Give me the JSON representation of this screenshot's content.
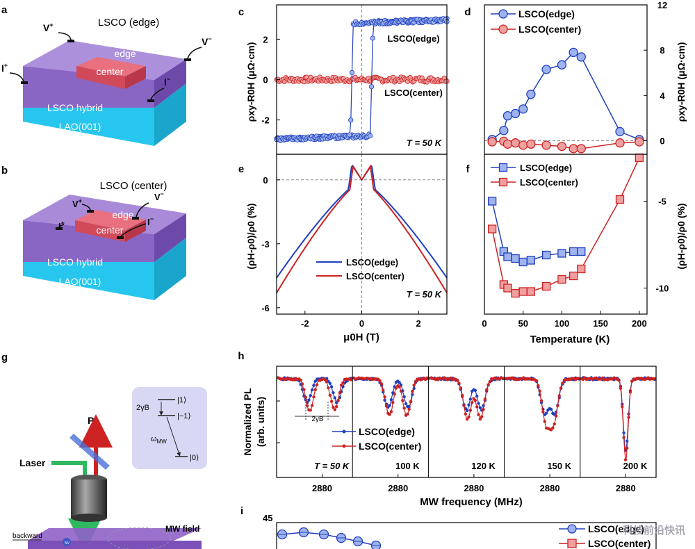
{
  "panels": {
    "a": {
      "letter": "a",
      "title": "LSCO (edge)",
      "top_label": "edge",
      "center_label": "center",
      "hybrid_label": "LSCO hybrid",
      "substrate_label": "LAO(001)",
      "probes": {
        "v_plus": "V",
        "v_minus": "V",
        "i_plus": "I",
        "i_minus": "I"
      }
    },
    "b": {
      "letter": "b",
      "title": "LSCO (center)",
      "top_label": "edge",
      "center_label": "center",
      "hybrid_label": "LSCO hybrid",
      "substrate_label": "LAO(001)",
      "probes": {
        "v_plus": "V",
        "v_minus": "V",
        "i_plus": "I",
        "i_minus": "I"
      }
    },
    "g": {
      "letter": "g",
      "pl_label": "PL",
      "laser_label": "Laser",
      "backward_label": "backward",
      "mw_field_label": "MW field",
      "nv_label": "NV",
      "inset": {
        "gamma_label": "2γB",
        "omega_label": "ω",
        "omega_sub": "MW",
        "state_1": "|1⟩",
        "state_m1": "|−1⟩",
        "state_0": "|0⟩"
      }
    },
    "i": {
      "letter": "i",
      "y_top": "45",
      "legend": [
        "LSCO(edge)",
        "LSCO(center)"
      ]
    }
  },
  "colors": {
    "blue": "#1f3fbf",
    "red": "#cc2222",
    "blue_fill": "#9fb4ee",
    "red_fill": "#f1a0a0",
    "purple": "#8f62c8",
    "cyan": "#27c6ee",
    "center_red": "#d94a5a"
  },
  "watermark": "科技前沿快讯",
  "chart_data": [
    {
      "panel": "c",
      "type": "line",
      "temperature_label": "T = 50 K",
      "ylabel": "ρxy-R0H (μΩ·cm)",
      "ylim": [
        -3.7,
        3.7
      ],
      "xlim": [
        -3,
        3
      ],
      "yticks": [
        -2,
        0,
        2
      ],
      "series": [
        {
          "name": "LSCO(edge)",
          "shape": "hysteresis",
          "saturation": 2.8,
          "coercive": 0.3
        },
        {
          "name": "LSCO(center)",
          "shape": "flat",
          "saturation": 0.0
        }
      ],
      "labels": [
        "LSCO(edge)",
        "LSCO(center)"
      ]
    },
    {
      "panel": "d",
      "type": "line",
      "xlabel": "",
      "ylabel": "ρxy-R0H (μΩ·cm)",
      "ylim": [
        -1.2,
        12
      ],
      "xlim": [
        0,
        210
      ],
      "yticks": [
        0,
        4,
        8,
        12
      ],
      "legend": [
        "LSCO(edge)",
        "LSCO(center)"
      ],
      "series": [
        {
          "name": "LSCO(edge)",
          "x": [
            10,
            25,
            30,
            40,
            50,
            60,
            80,
            100,
            115,
            125,
            175,
            200
          ],
          "y": [
            0.1,
            0.9,
            2.2,
            2.4,
            2.8,
            4.1,
            6.3,
            6.7,
            7.8,
            7.4,
            0.8,
            0.1
          ]
        },
        {
          "name": "LSCO(center)",
          "x": [
            10,
            25,
            30,
            40,
            50,
            60,
            80,
            100,
            115,
            125,
            175,
            200
          ],
          "y": [
            -0.1,
            -0.05,
            -0.3,
            -0.2,
            -0.4,
            -0.3,
            -0.4,
            -0.5,
            -0.7,
            -0.7,
            -0.2,
            -0.1
          ]
        }
      ]
    },
    {
      "panel": "e",
      "type": "line",
      "xlabel": "μ0H (T)",
      "ylabel": "(ρH-ρ0)/ρ0 (%)",
      "ylim": [
        -6.3,
        1.2
      ],
      "xlim": [
        -3,
        3
      ],
      "xticks": [
        -2,
        0,
        2
      ],
      "yticks": [
        0,
        -3,
        -6
      ],
      "temperature_label": "T = 50 K",
      "legend": [
        "LSCO(edge)",
        "LSCO(center)"
      ],
      "series": [
        {
          "name": "LSCO(edge)",
          "end_value": -4.6,
          "peak": 0.7,
          "peak_field": 0.35
        },
        {
          "name": "LSCO(center)",
          "end_value": -5.3,
          "peak": 0.7,
          "peak_field": 0.3
        }
      ]
    },
    {
      "panel": "f",
      "type": "line",
      "xlabel": "Temperature (K)",
      "ylabel": "(ρH-ρ0)/ρ0 (%)",
      "ylim": [
        -11.5,
        -2.3
      ],
      "xlim": [
        0,
        210
      ],
      "xticks": [
        0,
        50,
        100,
        150,
        200
      ],
      "yticks": [
        -5,
        -10
      ],
      "legend": [
        "LSCO(edge)",
        "LSCO(center)"
      ],
      "series": [
        {
          "name": "LSCO(edge)",
          "x": [
            10,
            25,
            30,
            40,
            50,
            60,
            80,
            100,
            115,
            125
          ],
          "y": [
            -5.0,
            -7.9,
            -8.2,
            -8.3,
            -8.5,
            -8.4,
            -8.1,
            -8.0,
            -7.9,
            -7.9
          ]
        },
        {
          "name": "LSCO(center)",
          "x": [
            10,
            25,
            30,
            40,
            50,
            60,
            80,
            100,
            115,
            125,
            175,
            200
          ],
          "y": [
            -6.6,
            -9.8,
            -10.0,
            -10.3,
            -10.2,
            -10.2,
            -9.9,
            -9.5,
            -9.3,
            -8.9,
            -4.9,
            -2.5
          ]
        }
      ]
    },
    {
      "panel": "h",
      "type": "line",
      "xlabel": "MW frequency (MHz)",
      "ylabel": "Normalized PL (arb. units)",
      "xtick_label": "2880",
      "legend": [
        "LSCO(edge)",
        "LSCO(center)"
      ],
      "split_label": "2γB",
      "temperatures": [
        "T = 50 K",
        "100 K",
        "120 K",
        "150 K",
        "200 K"
      ],
      "splitting_mhz": {
        "LSCO(edge)": [
          6,
          4,
          3,
          2,
          0
        ],
        "LSCO(center)": [
          5,
          3.5,
          2.6,
          1.6,
          0
        ]
      },
      "dip_depth": {
        "LSCO(edge)": [
          0.45,
          0.55,
          0.6,
          0.65,
          0.85
        ],
        "LSCO(center)": [
          0.6,
          0.7,
          0.75,
          0.8,
          0.95
        ]
      }
    }
  ]
}
